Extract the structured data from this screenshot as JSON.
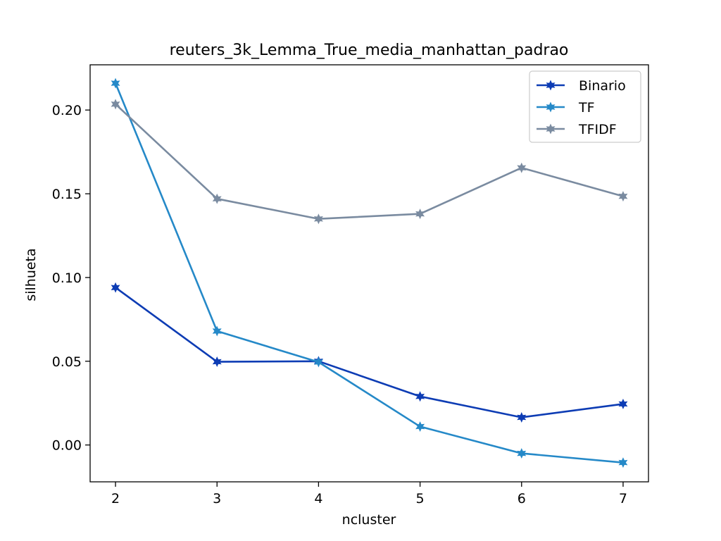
{
  "chart_data": {
    "type": "line",
    "title": "reuters_3k_Lemma_True_media_manhattan_padrao",
    "xlabel": "ncluster",
    "ylabel": "silhueta",
    "x": [
      2,
      3,
      4,
      5,
      6,
      7
    ],
    "xlim": [
      1.75,
      7.25
    ],
    "ylim": [
      -0.022,
      0.227
    ],
    "xticks": [
      2,
      3,
      4,
      5,
      6,
      7
    ],
    "yticks": [
      0.0,
      0.05,
      0.1,
      0.15,
      0.2
    ],
    "ytick_labels": [
      "0.00",
      "0.05",
      "0.10",
      "0.15",
      "0.20"
    ],
    "grid": false,
    "legend_position": "top-right",
    "marker": "star",
    "series": [
      {
        "name": "Binario",
        "color": "#0d3cb4",
        "values": [
          0.094,
          0.0497,
          0.05,
          0.029,
          0.0165,
          0.0245
        ]
      },
      {
        "name": "TF",
        "color": "#2589c8",
        "values": [
          0.216,
          0.068,
          0.0495,
          0.011,
          -0.005,
          -0.0105
        ]
      },
      {
        "name": "TFIDF",
        "color": "#7a8ba0",
        "values": [
          0.2035,
          0.147,
          0.135,
          0.138,
          0.1655,
          0.1485
        ]
      }
    ]
  }
}
